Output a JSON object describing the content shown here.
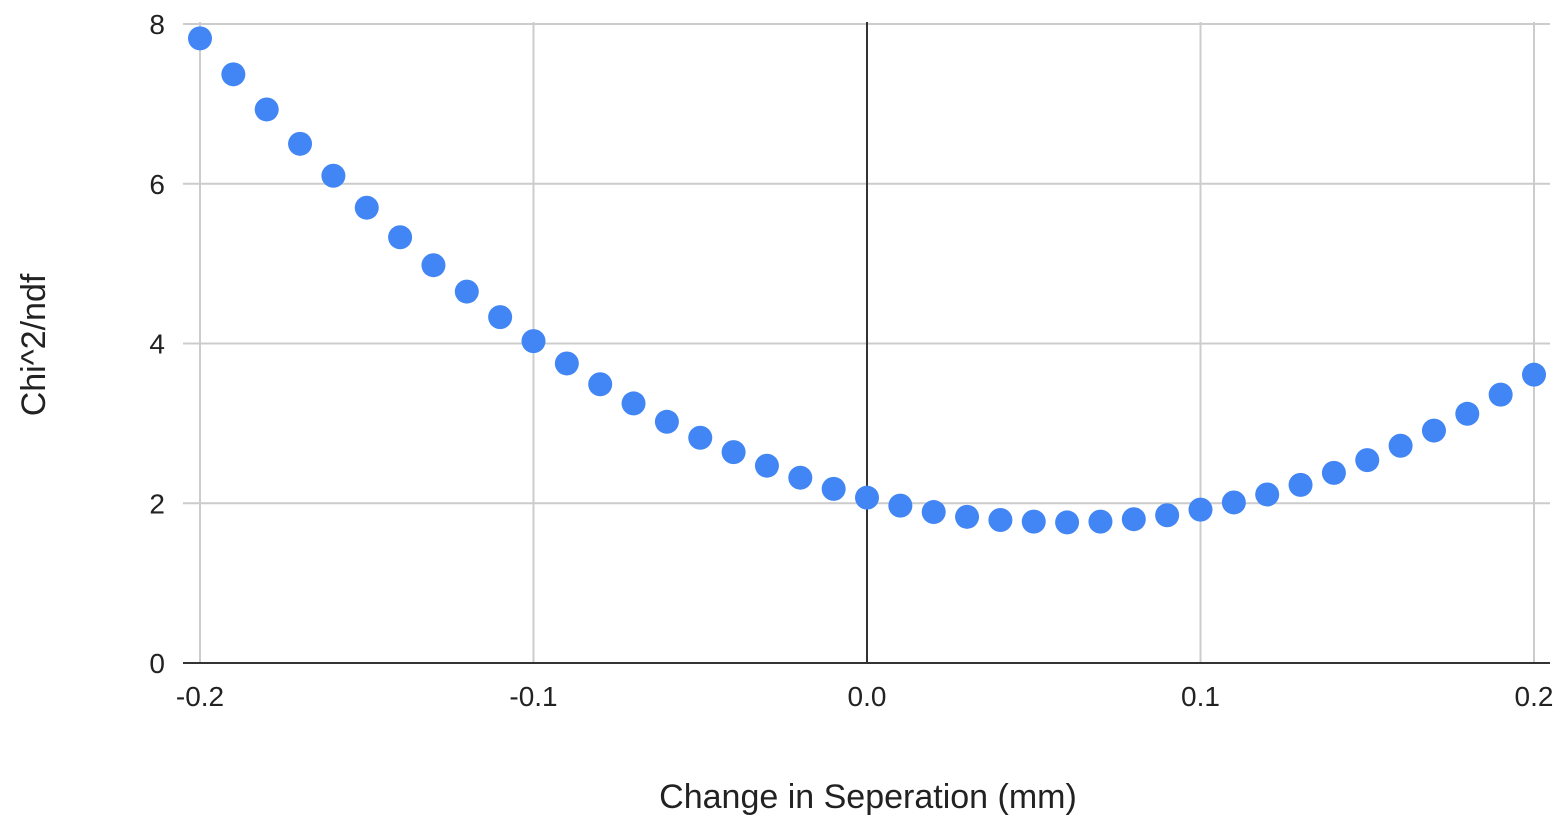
{
  "chart_data": {
    "type": "scatter",
    "title": "",
    "xlabel": "Change in Seperation (mm)",
    "ylabel": "Chi^2/ndf",
    "xlim": [
      -0.2,
      0.2
    ],
    "ylim": [
      0,
      8
    ],
    "x_ticks": [
      "-0.2",
      "-0.1",
      "0.0",
      "0.1",
      "0.2"
    ],
    "x_tick_values": [
      -0.2,
      -0.1,
      0.0,
      0.1,
      0.2
    ],
    "y_ticks": [
      "0",
      "2",
      "4",
      "6",
      "8"
    ],
    "y_tick_values": [
      0,
      2,
      4,
      6,
      8
    ],
    "grid": true,
    "legend": "none",
    "series": [
      {
        "color": "#4285f4",
        "x": [
          -0.2,
          -0.19,
          -0.18,
          -0.17,
          -0.16,
          -0.15,
          -0.14,
          -0.13,
          -0.12,
          -0.11,
          -0.1,
          -0.09,
          -0.08,
          -0.07,
          -0.06,
          -0.05,
          -0.04,
          -0.03,
          -0.02,
          -0.01,
          0.0,
          0.01,
          0.02,
          0.03,
          0.04,
          0.05,
          0.06,
          0.07,
          0.08,
          0.09,
          0.1,
          0.11,
          0.12,
          0.13,
          0.14,
          0.15,
          0.16,
          0.17,
          0.18,
          0.19,
          0.2
        ],
        "y": [
          7.82,
          7.37,
          6.93,
          6.5,
          6.1,
          5.7,
          5.33,
          4.98,
          4.65,
          4.33,
          4.03,
          3.75,
          3.49,
          3.25,
          3.02,
          2.82,
          2.64,
          2.47,
          2.32,
          2.18,
          2.07,
          1.97,
          1.89,
          1.83,
          1.79,
          1.77,
          1.76,
          1.77,
          1.8,
          1.85,
          1.92,
          2.01,
          2.11,
          2.23,
          2.38,
          2.54,
          2.72,
          2.91,
          3.12,
          3.36,
          3.61
        ]
      }
    ]
  }
}
